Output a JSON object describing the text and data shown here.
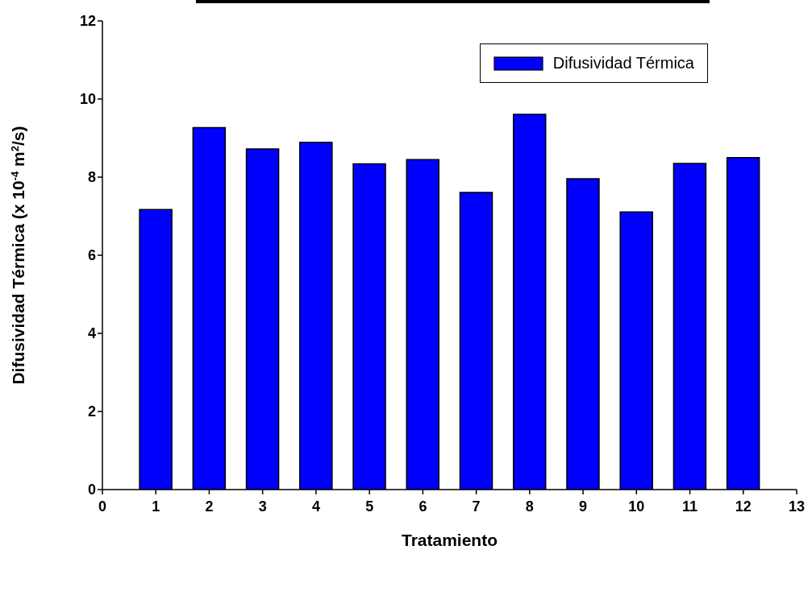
{
  "chart_data": {
    "type": "bar",
    "xlabel": "Tratamiento",
    "ylabel": "Difusividad Térmica (x 10$^{-4}$ m$^{2}$/s)",
    "x": [
      1,
      2,
      3,
      4,
      5,
      6,
      7,
      8,
      9,
      10,
      11,
      12
    ],
    "series": [
      {
        "name": "Difusividad Térmica",
        "color": "#0000ff",
        "values": [
          7.17,
          9.27,
          8.72,
          8.89,
          8.34,
          8.45,
          7.61,
          9.61,
          7.96,
          7.11,
          8.35,
          8.5
        ]
      }
    ],
    "xlim": [
      0,
      13
    ],
    "xticks": [
      0,
      1,
      2,
      3,
      4,
      5,
      6,
      7,
      8,
      9,
      10,
      11,
      12,
      13
    ],
    "ylim": [
      0,
      12
    ],
    "yticks": [
      0,
      2,
      4,
      6,
      8,
      10,
      12
    ],
    "legend": "top right",
    "grid": false
  }
}
